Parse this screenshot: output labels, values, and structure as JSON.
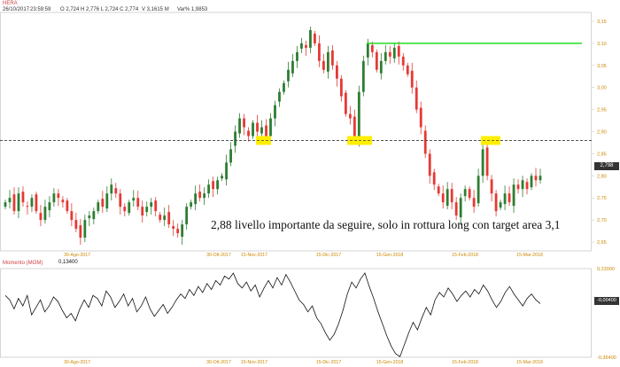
{
  "header": {
    "symbol": "HERA",
    "date": "26/10/2017",
    "time": "23:59:59",
    "ohlc": "O 2,724  H 2,776  L 2,724  C 2,774",
    "volume": "V 3,1615 M",
    "change": "Var% 1,9853"
  },
  "annotation": {
    "text": "2,88 livello importante da seguire, solo in rottura long con target area 3,1"
  },
  "price_panel": {
    "last_price": "2,798",
    "y_axis_labels": [
      "3,15",
      "3,10",
      "3,05",
      "3,00",
      "2,95",
      "2,90",
      "2,85",
      "2,80",
      "2,75",
      "2,70",
      "2,65"
    ],
    "date_labels": [
      "30-Ago-2017",
      "30-Ott-2017",
      "15-Nov-2017",
      "15-Dic-2017",
      "15-Gen-2018",
      "15-Feb-2018",
      "15-Mar-2018"
    ]
  },
  "momentum_panel": {
    "title": "Momento (MOM)",
    "current_value": "0,13400",
    "last_value": "-0,00400",
    "y_axis_labels": [
      "0,23000",
      "-0,36400"
    ],
    "date_labels": [
      "30-Ago-2017",
      "30-Ott-2017",
      "15-Nov-2017",
      "15-Dic-2017",
      "15-Gen-2018",
      "15-Feb-2018",
      "15-Mar-2018"
    ]
  },
  "colors": {
    "up": "#2e7d32",
    "down": "#e53935",
    "resistance_line": "#22dd22",
    "support_line": "#444444",
    "highlight": "#ffee00",
    "axis_text": "#cc8800"
  },
  "chart_data": [
    {
      "type": "candlestick",
      "title": "HERA",
      "y_scale_min": 2.63,
      "y_scale_max": 3.17,
      "closes": [
        2.74,
        2.75,
        2.72,
        2.76,
        2.74,
        2.73,
        2.75,
        2.72,
        2.7,
        2.73,
        2.74,
        2.76,
        2.75,
        2.74,
        2.72,
        2.7,
        2.68,
        2.66,
        2.7,
        2.71,
        2.72,
        2.74,
        2.73,
        2.76,
        2.78,
        2.76,
        2.73,
        2.72,
        2.74,
        2.75,
        2.73,
        2.71,
        2.73,
        2.74,
        2.72,
        2.7,
        2.71,
        2.69,
        2.68,
        2.67,
        2.69,
        2.73,
        2.74,
        2.76,
        2.75,
        2.76,
        2.78,
        2.77,
        2.79,
        2.8,
        2.83,
        2.86,
        2.9,
        2.93,
        2.91,
        2.89,
        2.92,
        2.9,
        2.91,
        2.89,
        2.93,
        2.96,
        2.99,
        3.01,
        3.04,
        3.06,
        3.08,
        3.1,
        3.09,
        3.13,
        3.1,
        3.06,
        3.04,
        3.08,
        3.05,
        3.02,
        2.98,
        2.94,
        2.93,
        2.89,
        2.99,
        3.06,
        3.1,
        3.08,
        3.04,
        3.06,
        3.08,
        3.07,
        3.09,
        3.07,
        3.05,
        3.03,
        3.0,
        2.95,
        2.91,
        2.85,
        2.8,
        2.78,
        2.76,
        2.74,
        2.77,
        2.74,
        2.71,
        2.75,
        2.77,
        2.75,
        2.73,
        2.8,
        2.86,
        2.8,
        2.76,
        2.72,
        2.74,
        2.76,
        2.74,
        2.78,
        2.77,
        2.79,
        2.77,
        2.8,
        2.79,
        2.8
      ],
      "resistance_level": 3.1,
      "support_level": 2.88,
      "support_highlights": [
        {
          "from": 2.87,
          "to": 2.89
        },
        {
          "from": 2.87,
          "to": 2.89
        },
        {
          "from": 2.87,
          "to": 2.89
        }
      ]
    },
    {
      "type": "line",
      "title": "Momento (MOM)",
      "ylim": [
        -0.364,
        0.23
      ],
      "values": [
        0.05,
        0.02,
        -0.04,
        0.03,
        -0.02,
        0.05,
        -0.08,
        -0.03,
        0.02,
        -0.06,
        -0.02,
        0.04,
        0.01,
        -0.05,
        -0.1,
        -0.07,
        -0.12,
        -0.04,
        0.02,
        -0.03,
        0.05,
        0.03,
        -0.02,
        0.08,
        0.04,
        -0.03,
        0.01,
        0.06,
        -0.02,
        0.03,
        -0.06,
        -0.02,
        0.04,
        -0.04,
        -0.09,
        -0.05,
        -0.01,
        -0.07,
        -0.03,
        0.02,
        0.06,
        0.03,
        0.09,
        0.05,
        0.11,
        0.07,
        0.13,
        0.09,
        0.15,
        0.12,
        0.18,
        0.16,
        0.2,
        0.13,
        0.1,
        0.14,
        0.08,
        0.12,
        0.04,
        0.1,
        0.15,
        0.1,
        0.17,
        0.12,
        0.19,
        0.14,
        0.08,
        0.02,
        -0.01,
        -0.06,
        -0.02,
        -0.1,
        -0.14,
        -0.2,
        -0.25,
        -0.21,
        -0.14,
        -0.05,
        0.06,
        0.14,
        0.1,
        0.16,
        0.2,
        0.11,
        0.03,
        -0.06,
        -0.14,
        -0.22,
        -0.29,
        -0.34,
        -0.36,
        -0.28,
        -0.2,
        -0.13,
        -0.18,
        -0.1,
        -0.03,
        -0.08,
        0.02,
        0.07,
        0.04,
        0.1,
        0.06,
        0.01,
        0.05,
        0.08,
        0.04,
        0.09,
        0.06,
        0.12,
        0.08,
        0.02,
        -0.03,
        0.01,
        0.07,
        0.11,
        0.06,
        0.02,
        -0.02,
        0.03,
        0.06,
        0.02,
        -0.004
      ]
    }
  ]
}
